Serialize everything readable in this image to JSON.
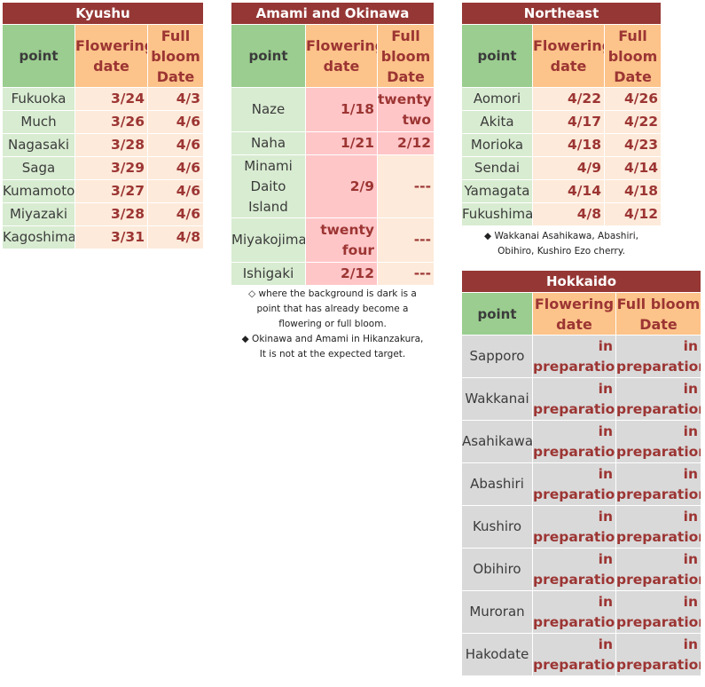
{
  "colors": {
    "title_bg": "#953735",
    "point_header_bg": "#9acd8f",
    "date_header_bg": "#fcc38a",
    "value_text": "#9c3533",
    "point_cell_bg": "#d8ecd1",
    "value_cell_bg": "#fdeada",
    "past_bg": "#ffc6c8",
    "hokkaido_cell_bg": "#d9d9d9"
  },
  "headers": {
    "point": "point",
    "flowering": [
      "Flowering",
      "date"
    ],
    "full_bloom": [
      "Full",
      "bloom",
      "Date"
    ],
    "full_bloom_wide": [
      "Full bloom",
      "Date"
    ]
  },
  "kyushu": {
    "title": "Kyushu",
    "rows": [
      {
        "point": "Fukuoka",
        "flowering": "3/24",
        "full": "4/3"
      },
      {
        "point": "Much",
        "flowering": "3/26",
        "full": "4/6"
      },
      {
        "point": "Nagasaki",
        "flowering": "3/28",
        "full": "4/6"
      },
      {
        "point": "Saga",
        "flowering": "3/29",
        "full": "4/6"
      },
      {
        "point": "Kumamoto",
        "flowering": "3/27",
        "full": "4/6"
      },
      {
        "point": "Miyazaki",
        "flowering": "3/28",
        "full": "4/6"
      },
      {
        "point": "Kagoshima",
        "flowering": "3/31",
        "full": "4/8"
      }
    ]
  },
  "okinawa": {
    "title": "Amami and Okinawa",
    "rows": [
      {
        "point": [
          "Naze"
        ],
        "flowering": [
          "1/18"
        ],
        "full": [
          "twenty",
          "two"
        ]
      },
      {
        "point": [
          "Naha"
        ],
        "flowering": [
          "1/21"
        ],
        "full": [
          "2/12"
        ]
      },
      {
        "point": [
          "Minami",
          "Daito",
          "Island"
        ],
        "flowering": [
          "2/9"
        ],
        "full": [
          "---"
        ]
      },
      {
        "point": [
          "Miyakojima"
        ],
        "flowering": [
          "twenty",
          "four"
        ],
        "full": [
          "---"
        ]
      },
      {
        "point": [
          "Ishigaki"
        ],
        "flowering": [
          "2/12"
        ],
        "full": [
          "---"
        ]
      }
    ],
    "notes": [
      "◇ where the background is dark is a",
      "point that has already become a",
      "flowering or full bloom.",
      "◆ Okinawa and Amami in Hikanzakura,",
      "It is not at the expected target."
    ]
  },
  "northeast": {
    "title": "Northeast",
    "rows": [
      {
        "point": "Aomori",
        "flowering": "4/22",
        "full": "4/26"
      },
      {
        "point": "Akita",
        "flowering": "4/17",
        "full": "4/22"
      },
      {
        "point": "Morioka",
        "flowering": "4/18",
        "full": "4/23"
      },
      {
        "point": "Sendai",
        "flowering": "4/9",
        "full": "4/14"
      },
      {
        "point": "Yamagata",
        "flowering": "4/14",
        "full": "4/18"
      },
      {
        "point": "Fukushima",
        "flowering": "4/8",
        "full": "4/12"
      }
    ],
    "notes": [
      "◆ Wakkanai Asahikawa, Abashiri,",
      "Obihiro, Kushiro Ezo cherry."
    ]
  },
  "hokkaido": {
    "title": "Hokkaido",
    "value_lines": [
      "in",
      "preparation"
    ],
    "points": [
      "Sapporo",
      "Wakkanai",
      "Asahikawa",
      "Abashiri",
      "Kushiro",
      "Obihiro",
      "Muroran",
      "Hakodate"
    ]
  }
}
